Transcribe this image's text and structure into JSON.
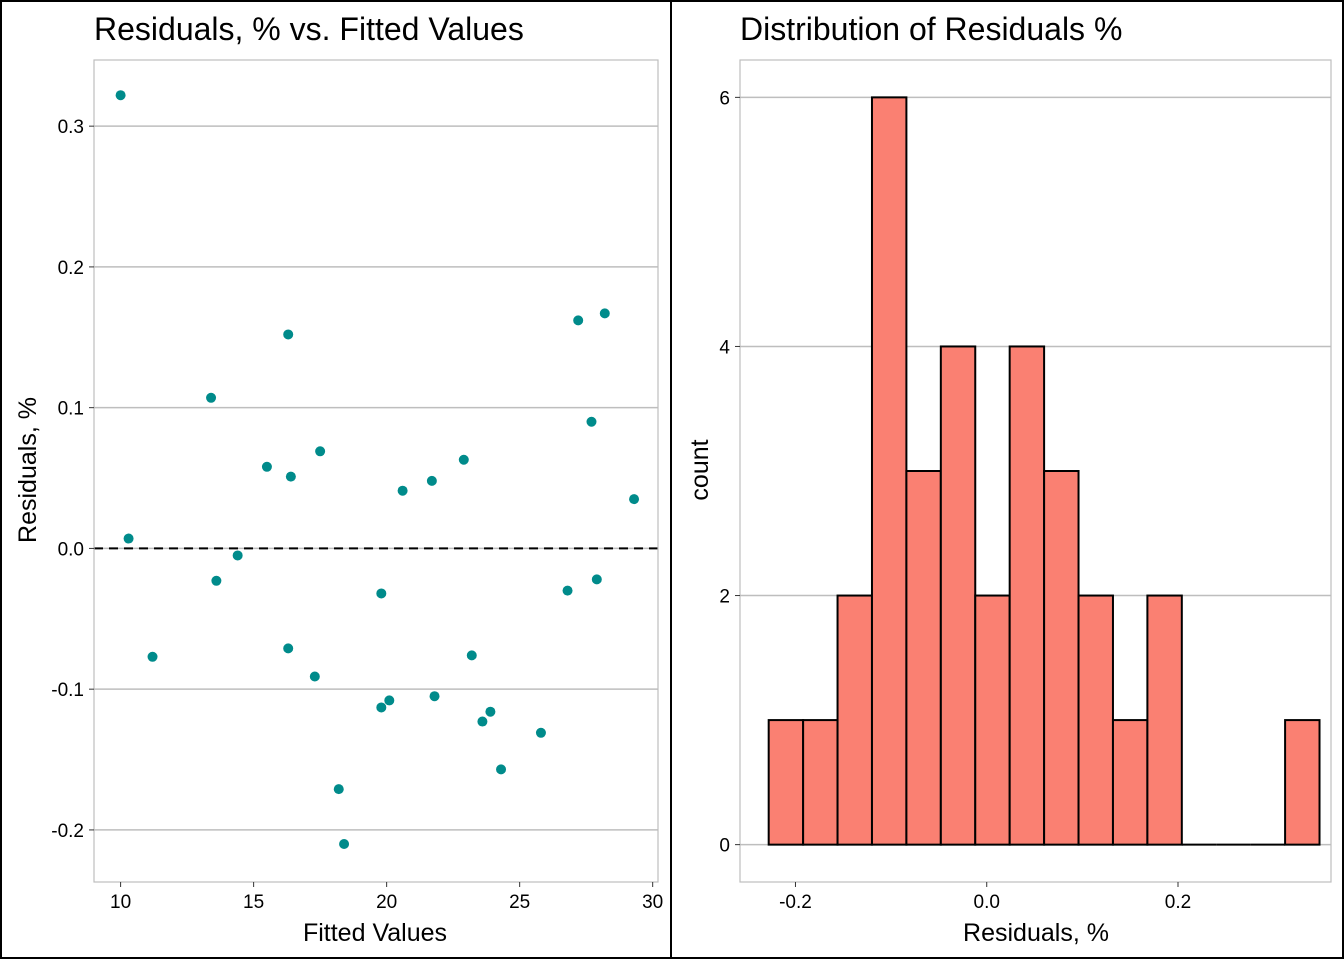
{
  "chart_data": [
    {
      "type": "scatter",
      "title": "Residuals, % vs. Fitted Values",
      "xlabel": "Fitted Values",
      "ylabel": "Residuals, %",
      "xlim": [
        9.0,
        30.2
      ],
      "ylim": [
        -0.237,
        0.347
      ],
      "xticks": [
        "10",
        "15",
        "20",
        "25",
        "30"
      ],
      "yticks": [
        "-0.2",
        "-0.1",
        "0.0",
        "0.1",
        "0.2",
        "0.3"
      ],
      "grid": "horizontal",
      "reference_line": {
        "y": 0.0,
        "style": "dashed"
      },
      "point_color": "#008B8B",
      "points": [
        {
          "x": 10.0,
          "y": 0.322
        },
        {
          "x": 10.3,
          "y": 0.007
        },
        {
          "x": 11.2,
          "y": -0.077
        },
        {
          "x": 13.4,
          "y": 0.107
        },
        {
          "x": 13.6,
          "y": -0.023
        },
        {
          "x": 14.4,
          "y": -0.005
        },
        {
          "x": 15.5,
          "y": 0.058
        },
        {
          "x": 16.3,
          "y": 0.152
        },
        {
          "x": 16.3,
          "y": -0.071
        },
        {
          "x": 16.4,
          "y": 0.051
        },
        {
          "x": 17.3,
          "y": -0.091
        },
        {
          "x": 17.5,
          "y": 0.069
        },
        {
          "x": 18.2,
          "y": -0.171
        },
        {
          "x": 18.4,
          "y": -0.21
        },
        {
          "x": 19.8,
          "y": -0.032
        },
        {
          "x": 19.8,
          "y": -0.113
        },
        {
          "x": 20.1,
          "y": -0.108
        },
        {
          "x": 20.6,
          "y": 0.041
        },
        {
          "x": 21.7,
          "y": 0.048
        },
        {
          "x": 21.8,
          "y": -0.105
        },
        {
          "x": 22.9,
          "y": 0.063
        },
        {
          "x": 23.2,
          "y": -0.076
        },
        {
          "x": 23.6,
          "y": -0.123
        },
        {
          "x": 23.9,
          "y": -0.116
        },
        {
          "x": 24.3,
          "y": -0.157
        },
        {
          "x": 25.8,
          "y": -0.131
        },
        {
          "x": 26.8,
          "y": -0.03
        },
        {
          "x": 27.2,
          "y": 0.162
        },
        {
          "x": 27.7,
          "y": 0.09
        },
        {
          "x": 27.9,
          "y": -0.022
        },
        {
          "x": 28.2,
          "y": 0.167
        },
        {
          "x": 29.3,
          "y": 0.035
        }
      ]
    },
    {
      "type": "bar",
      "subtype": "histogram",
      "title": "Distribution of Residuals %",
      "xlabel": "Residuals, %",
      "ylabel": "count",
      "xlim": [
        -0.258,
        0.36
      ],
      "ylim": [
        -0.3,
        6.3
      ],
      "xticks": [
        "-0.2",
        "0.0",
        "0.2"
      ],
      "yticks": [
        "0",
        "2",
        "4",
        "6"
      ],
      "grid": "horizontal",
      "bar_color": "#FA8072",
      "bar_edge_color": "#000000",
      "bin_width": 0.036,
      "bins": [
        {
          "start": -0.228,
          "count": 1
        },
        {
          "start": -0.192,
          "count": 1
        },
        {
          "start": -0.156,
          "count": 2
        },
        {
          "start": -0.12,
          "count": 6
        },
        {
          "start": -0.084,
          "count": 3
        },
        {
          "start": -0.048,
          "count": 4
        },
        {
          "start": -0.012,
          "count": 2
        },
        {
          "start": 0.024,
          "count": 4
        },
        {
          "start": 0.06,
          "count": 3
        },
        {
          "start": 0.096,
          "count": 2
        },
        {
          "start": 0.132,
          "count": 1
        },
        {
          "start": 0.168,
          "count": 2
        },
        {
          "start": 0.204,
          "count": 0
        },
        {
          "start": 0.24,
          "count": 0
        },
        {
          "start": 0.276,
          "count": 0
        },
        {
          "start": 0.312,
          "count": 1
        }
      ]
    }
  ]
}
